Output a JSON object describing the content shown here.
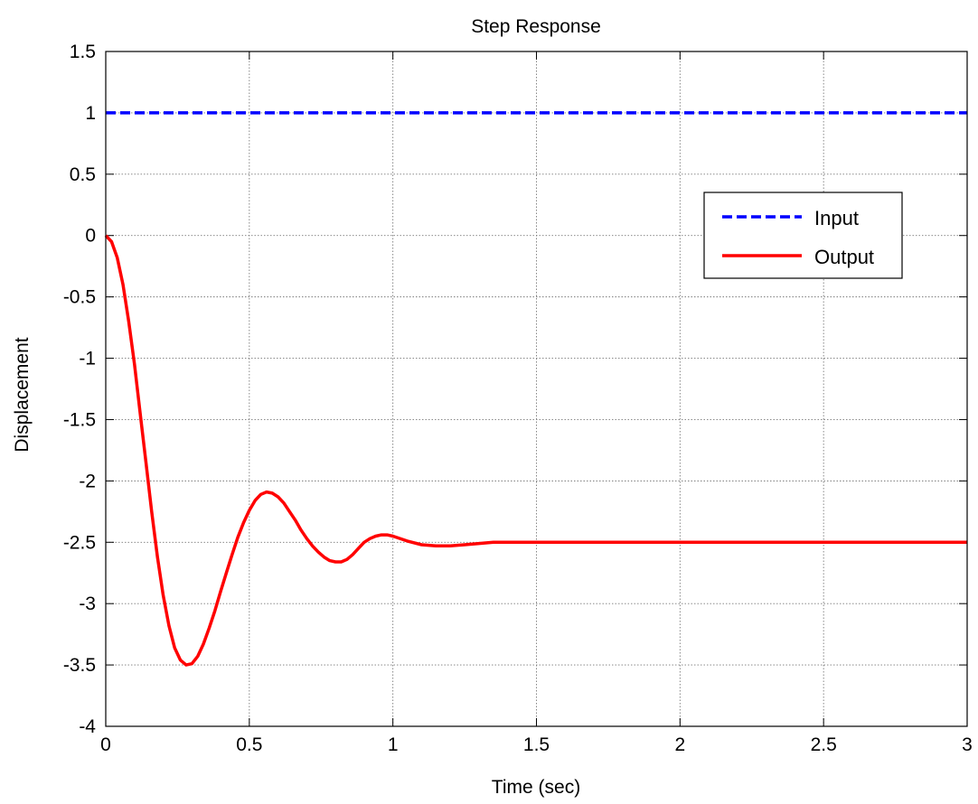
{
  "chart_data": {
    "type": "line",
    "title": "Step Response",
    "xlabel": "Time (sec)",
    "ylabel": "Displacement",
    "xlim": [
      0,
      3
    ],
    "ylim": [
      -4,
      1.5
    ],
    "x_ticks": [
      "0",
      "0.5",
      "1",
      "1.5",
      "2",
      "2.5",
      "3"
    ],
    "y_ticks": [
      "1.5",
      "1",
      "0.5",
      "0",
      "-0.5",
      "-1",
      "-1.5",
      "-2",
      "-2.5",
      "-3",
      "-3.5",
      "-4"
    ],
    "grid": true,
    "legend_position": "right, upper",
    "series": [
      {
        "name": "Input",
        "color": "#0000ff",
        "style": "dashed",
        "x": [
          0,
          3
        ],
        "y": [
          1,
          1
        ]
      },
      {
        "name": "Output",
        "color": "#ff0000",
        "style": "solid",
        "x": [
          0,
          0.02,
          0.04,
          0.06,
          0.08,
          0.1,
          0.12,
          0.14,
          0.16,
          0.18,
          0.2,
          0.22,
          0.24,
          0.26,
          0.28,
          0.3,
          0.32,
          0.34,
          0.36,
          0.38,
          0.4,
          0.42,
          0.44,
          0.46,
          0.48,
          0.5,
          0.52,
          0.54,
          0.56,
          0.58,
          0.6,
          0.62,
          0.64,
          0.66,
          0.68,
          0.7,
          0.72,
          0.74,
          0.76,
          0.78,
          0.8,
          0.82,
          0.84,
          0.86,
          0.88,
          0.9,
          0.92,
          0.94,
          0.96,
          0.98,
          1.0,
          1.05,
          1.1,
          1.15,
          1.2,
          1.25,
          1.3,
          1.35,
          1.4,
          1.45,
          1.5,
          1.55,
          1.6,
          1.65,
          1.7,
          1.75,
          1.8,
          1.9,
          2.0,
          2.2,
          2.4,
          2.6,
          2.8,
          3.0
        ],
        "y": [
          0,
          -0.05,
          -0.18,
          -0.4,
          -0.7,
          -1.05,
          -1.45,
          -1.85,
          -2.25,
          -2.62,
          -2.93,
          -3.18,
          -3.36,
          -3.46,
          -3.5,
          -3.49,
          -3.43,
          -3.33,
          -3.2,
          -3.06,
          -2.9,
          -2.75,
          -2.6,
          -2.46,
          -2.34,
          -2.24,
          -2.16,
          -2.11,
          -2.09,
          -2.1,
          -2.13,
          -2.18,
          -2.25,
          -2.32,
          -2.4,
          -2.47,
          -2.53,
          -2.58,
          -2.62,
          -2.65,
          -2.66,
          -2.66,
          -2.64,
          -2.6,
          -2.55,
          -2.5,
          -2.47,
          -2.45,
          -2.44,
          -2.44,
          -2.45,
          -2.49,
          -2.52,
          -2.53,
          -2.53,
          -2.52,
          -2.51,
          -2.5,
          -2.5,
          -2.5,
          -2.5,
          -2.5,
          -2.5,
          -2.5,
          -2.5,
          -2.5,
          -2.5,
          -2.5,
          -2.5,
          -2.5,
          -2.5,
          -2.5,
          -2.5,
          -2.5
        ]
      }
    ]
  }
}
